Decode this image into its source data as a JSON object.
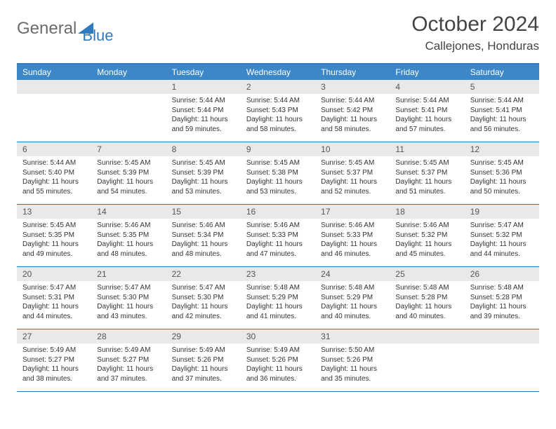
{
  "logo": {
    "part1": "General",
    "part2": "Blue"
  },
  "title": "October 2024",
  "location": "Callejones, Honduras",
  "colors": {
    "header_bg": "#3b87c8",
    "border": "#2f7bbf",
    "daynum_bg": "#e9e9e9",
    "page_bg": "#ffffff",
    "text": "#333333",
    "logo_gray": "#6b6b6b"
  },
  "day_headers": [
    "Sunday",
    "Monday",
    "Tuesday",
    "Wednesday",
    "Thursday",
    "Friday",
    "Saturday"
  ],
  "weeks": [
    [
      {
        "blank": true
      },
      {
        "blank": true
      },
      {
        "n": "1",
        "sunrise": "5:44 AM",
        "sunset": "5:44 PM",
        "daylight": "11 hours and 59 minutes."
      },
      {
        "n": "2",
        "sunrise": "5:44 AM",
        "sunset": "5:43 PM",
        "daylight": "11 hours and 58 minutes."
      },
      {
        "n": "3",
        "sunrise": "5:44 AM",
        "sunset": "5:42 PM",
        "daylight": "11 hours and 58 minutes."
      },
      {
        "n": "4",
        "sunrise": "5:44 AM",
        "sunset": "5:41 PM",
        "daylight": "11 hours and 57 minutes."
      },
      {
        "n": "5",
        "sunrise": "5:44 AM",
        "sunset": "5:41 PM",
        "daylight": "11 hours and 56 minutes."
      }
    ],
    [
      {
        "n": "6",
        "sunrise": "5:44 AM",
        "sunset": "5:40 PM",
        "daylight": "11 hours and 55 minutes."
      },
      {
        "n": "7",
        "sunrise": "5:45 AM",
        "sunset": "5:39 PM",
        "daylight": "11 hours and 54 minutes."
      },
      {
        "n": "8",
        "sunrise": "5:45 AM",
        "sunset": "5:39 PM",
        "daylight": "11 hours and 53 minutes."
      },
      {
        "n": "9",
        "sunrise": "5:45 AM",
        "sunset": "5:38 PM",
        "daylight": "11 hours and 53 minutes."
      },
      {
        "n": "10",
        "sunrise": "5:45 AM",
        "sunset": "5:37 PM",
        "daylight": "11 hours and 52 minutes."
      },
      {
        "n": "11",
        "sunrise": "5:45 AM",
        "sunset": "5:37 PM",
        "daylight": "11 hours and 51 minutes."
      },
      {
        "n": "12",
        "sunrise": "5:45 AM",
        "sunset": "5:36 PM",
        "daylight": "11 hours and 50 minutes."
      }
    ],
    [
      {
        "n": "13",
        "sunrise": "5:45 AM",
        "sunset": "5:35 PM",
        "daylight": "11 hours and 49 minutes."
      },
      {
        "n": "14",
        "sunrise": "5:46 AM",
        "sunset": "5:35 PM",
        "daylight": "11 hours and 48 minutes."
      },
      {
        "n": "15",
        "sunrise": "5:46 AM",
        "sunset": "5:34 PM",
        "daylight": "11 hours and 48 minutes."
      },
      {
        "n": "16",
        "sunrise": "5:46 AM",
        "sunset": "5:33 PM",
        "daylight": "11 hours and 47 minutes."
      },
      {
        "n": "17",
        "sunrise": "5:46 AM",
        "sunset": "5:33 PM",
        "daylight": "11 hours and 46 minutes."
      },
      {
        "n": "18",
        "sunrise": "5:46 AM",
        "sunset": "5:32 PM",
        "daylight": "11 hours and 45 minutes."
      },
      {
        "n": "19",
        "sunrise": "5:47 AM",
        "sunset": "5:32 PM",
        "daylight": "11 hours and 44 minutes."
      }
    ],
    [
      {
        "n": "20",
        "sunrise": "5:47 AM",
        "sunset": "5:31 PM",
        "daylight": "11 hours and 44 minutes."
      },
      {
        "n": "21",
        "sunrise": "5:47 AM",
        "sunset": "5:30 PM",
        "daylight": "11 hours and 43 minutes."
      },
      {
        "n": "22",
        "sunrise": "5:47 AM",
        "sunset": "5:30 PM",
        "daylight": "11 hours and 42 minutes."
      },
      {
        "n": "23",
        "sunrise": "5:48 AM",
        "sunset": "5:29 PM",
        "daylight": "11 hours and 41 minutes."
      },
      {
        "n": "24",
        "sunrise": "5:48 AM",
        "sunset": "5:29 PM",
        "daylight": "11 hours and 40 minutes."
      },
      {
        "n": "25",
        "sunrise": "5:48 AM",
        "sunset": "5:28 PM",
        "daylight": "11 hours and 40 minutes."
      },
      {
        "n": "26",
        "sunrise": "5:48 AM",
        "sunset": "5:28 PM",
        "daylight": "11 hours and 39 minutes."
      }
    ],
    [
      {
        "n": "27",
        "sunrise": "5:49 AM",
        "sunset": "5:27 PM",
        "daylight": "11 hours and 38 minutes."
      },
      {
        "n": "28",
        "sunrise": "5:49 AM",
        "sunset": "5:27 PM",
        "daylight": "11 hours and 37 minutes."
      },
      {
        "n": "29",
        "sunrise": "5:49 AM",
        "sunset": "5:26 PM",
        "daylight": "11 hours and 37 minutes."
      },
      {
        "n": "30",
        "sunrise": "5:49 AM",
        "sunset": "5:26 PM",
        "daylight": "11 hours and 36 minutes."
      },
      {
        "n": "31",
        "sunrise": "5:50 AM",
        "sunset": "5:26 PM",
        "daylight": "11 hours and 35 minutes."
      },
      {
        "blank": true
      },
      {
        "blank": true
      }
    ]
  ],
  "labels": {
    "sunrise": "Sunrise: ",
    "sunset": "Sunset: ",
    "daylight": "Daylight: "
  }
}
